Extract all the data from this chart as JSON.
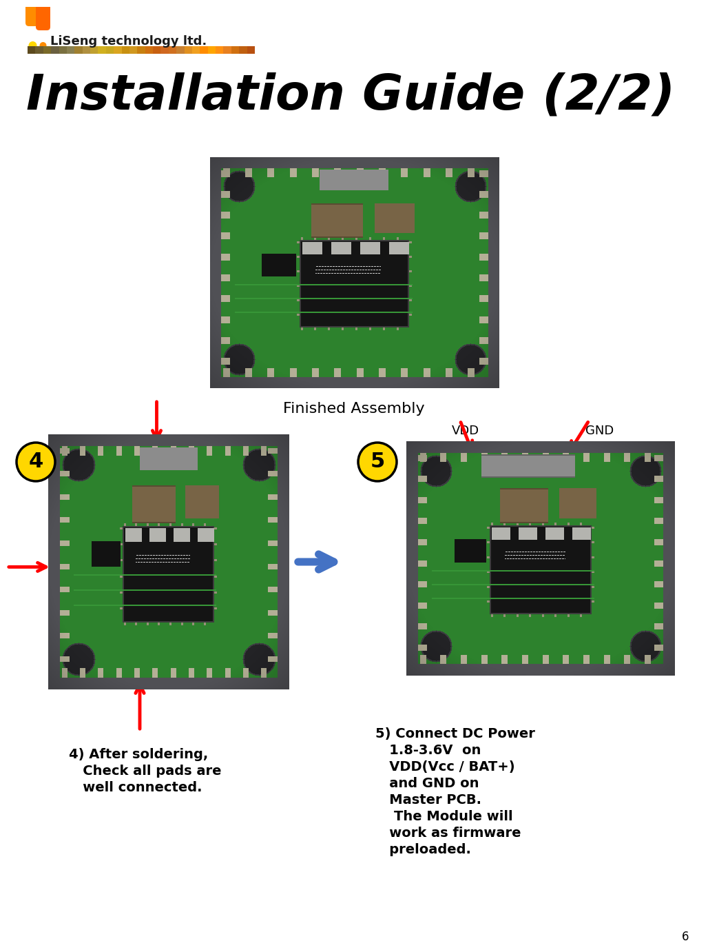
{
  "title": "Installation Guide (2/2)",
  "finished_assembly_label": "Finished Assembly",
  "step4_circle_color": "#FFD700",
  "step5_circle_color": "#FFD700",
  "step4_label": "4",
  "step5_label": "5",
  "step4_text_line1": "4) After soldering,",
  "step4_text_line2": "   Check all pads are",
  "step4_text_line3": "   well connected.",
  "step5_text_line1": "5) Connect DC Power",
  "step5_text_line2": "   1.8-3.6V  on",
  "step5_text_line3": "   VDD(Vcc / BAT+)",
  "step5_text_line4": "   and GND on",
  "step5_text_line5": "   Master PCB.",
  "step5_text_line6": "    The Module will",
  "step5_text_line7": "   work as firmware",
  "step5_text_line8": "   preloaded.",
  "vdd_label": "VDD",
  "gnd_label": "GND",
  "page_number": "6",
  "background_color": "#FFFFFF",
  "text_color": "#000000",
  "arrow_color": "#FF0000",
  "next_arrow_color": "#4472C4",
  "logo_text": "LiSeng technology ltd.",
  "title_fontsize": 52,
  "logo_bar_colors": [
    "#5C4A1E",
    "#6B5B2E",
    "#7A6A2A",
    "#6B6040",
    "#7A7040",
    "#898050",
    "#A08030",
    "#B09040",
    "#C0A030",
    "#D0B020",
    "#C8A820",
    "#DAA520",
    "#C89010",
    "#D09820",
    "#C88010",
    "#D07010",
    "#C86010",
    "#D06820",
    "#D07020",
    "#C88030",
    "#E09020",
    "#F0A020",
    "#FF8C00",
    "#FFA500",
    "#FF9010",
    "#E88020",
    "#D07010",
    "#C06010",
    "#B85010"
  ]
}
